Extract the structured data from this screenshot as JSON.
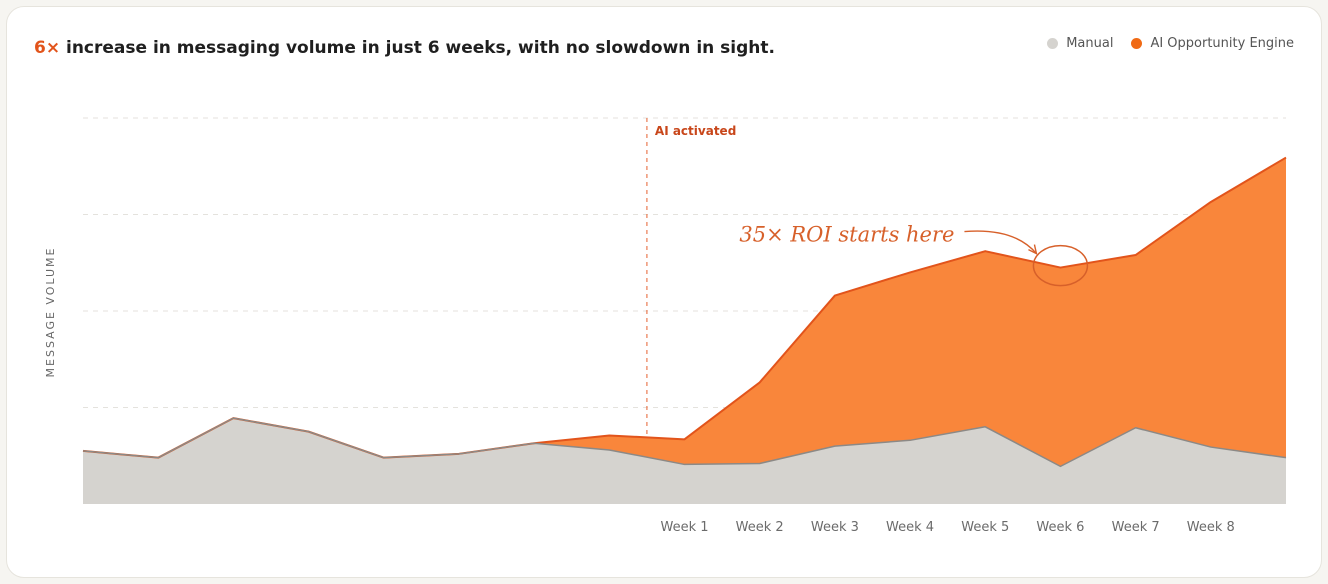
{
  "header": {
    "headline_accent": "6×",
    "headline_rest": " increase in messaging volume in just 6 weeks, with no slowdown in sight."
  },
  "legend": {
    "manual_label": "Manual",
    "ai_label": "AI Opportunity Engine"
  },
  "colors": {
    "manual_fill": "#d5d3cf",
    "manual_line": "#8c8986",
    "ai_fill": "#f9863b",
    "ai_line": "#e2541b",
    "annotation": "#d7602a"
  },
  "chart_data": {
    "type": "area",
    "stacked": false,
    "ylabel": "MESSAGE VOLUME",
    "ylim": [
      0,
      400
    ],
    "grid": true,
    "legend_position": "top-right",
    "x_tick_labels": [
      "",
      "",
      "",
      "",
      "",
      "",
      "",
      "",
      "Week 1",
      "Week 2",
      "Week 3",
      "Week 4",
      "Week 5",
      "Week 6",
      "Week 7",
      "Week 8",
      ""
    ],
    "series": [
      {
        "name": "Manual",
        "values": [
          55,
          48,
          89,
          75,
          48,
          52,
          63,
          56,
          41,
          42,
          60,
          66,
          80,
          39,
          79,
          59,
          48
        ]
      },
      {
        "name": "AI Opportunity Engine",
        "values": [
          55,
          48,
          89,
          75,
          48,
          52,
          63,
          71,
          67,
          126,
          216,
          240,
          262,
          245,
          258,
          313,
          359
        ]
      }
    ],
    "annotations": {
      "ai_activated": {
        "label": "AI activated",
        "x_index": 7.5
      },
      "roi": {
        "label": "35× ROI starts here",
        "x_index": 13
      }
    }
  }
}
